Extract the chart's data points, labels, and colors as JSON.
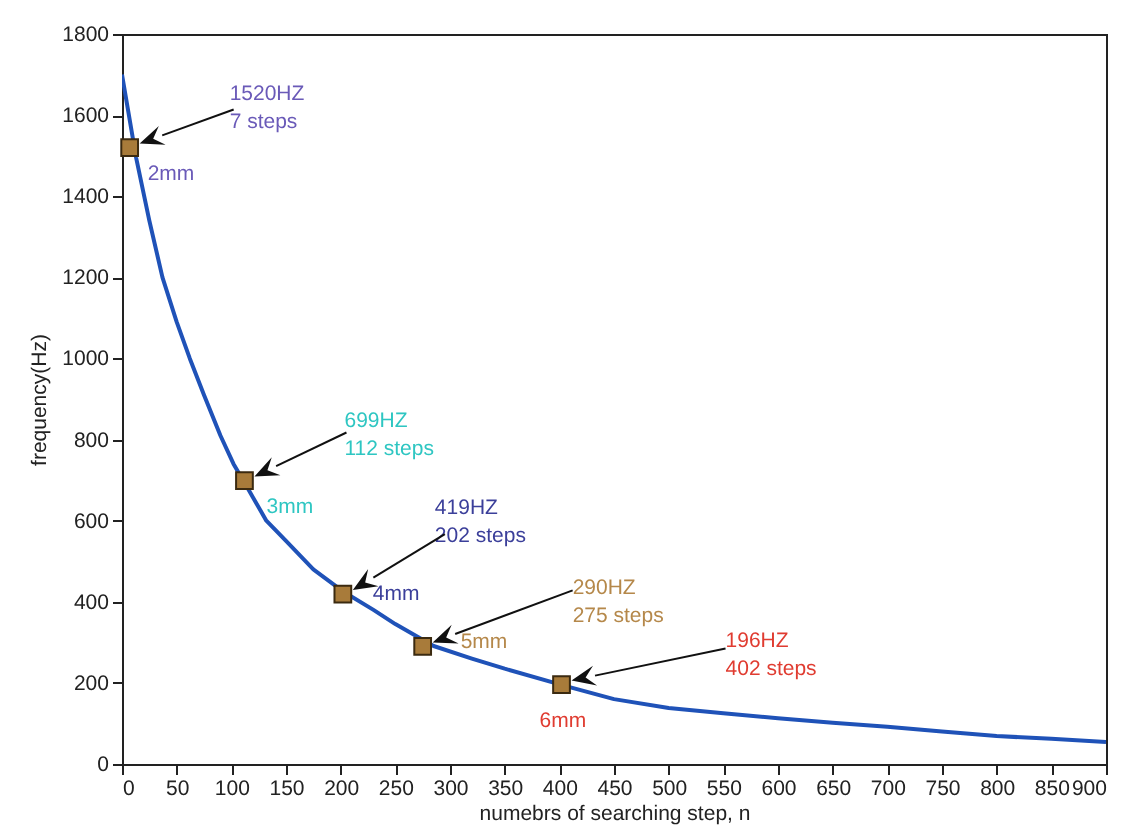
{
  "chart_data": {
    "type": "line",
    "xlabel": "numebrs of searching step, n",
    "ylabel": "frequency(Hz)",
    "xlim": [
      0,
      900
    ],
    "ylim": [
      0,
      1800
    ],
    "xticks": [
      0,
      50,
      100,
      150,
      200,
      250,
      300,
      350,
      400,
      450,
      500,
      550,
      600,
      650,
      700,
      750,
      800,
      850,
      900
    ],
    "yticks": [
      0,
      200,
      400,
      600,
      800,
      1000,
      1200,
      1400,
      1600,
      1800
    ],
    "series": [
      {
        "color": "#1f52b8",
        "x": [
          0,
          13,
          25,
          37,
          50,
          62,
          75,
          90,
          102,
          115,
          132,
          150,
          175,
          203,
          230,
          250,
          285,
          320,
          350,
          406,
          450,
          500,
          550,
          600,
          650,
          700,
          750,
          800,
          850,
          900
        ],
        "values": [
          1700,
          1494,
          1340,
          1200,
          1090,
          1000,
          910,
          810,
          740,
          680,
          600,
          550,
          480,
          424,
          380,
          345,
          291,
          260,
          235,
          192,
          160,
          138,
          125,
          113,
          102,
          92,
          80,
          69,
          62,
          54
        ]
      },
      {
        "type": "scatter",
        "marker": "square",
        "color": "#a87b3a",
        "x": [
          7,
          112,
          202,
          275,
          402
        ],
        "values": [
          1520,
          699,
          419,
          290,
          196
        ]
      }
    ],
    "annotations": [
      "1520HZ",
      "7 steps",
      "2mm",
      "699HZ",
      "112 steps",
      "3mm",
      "419HZ",
      "202 steps",
      "4mm",
      "290HZ",
      "275 steps",
      "5mm",
      "196HZ",
      "402 steps",
      "6mm"
    ],
    "grid": false
  }
}
